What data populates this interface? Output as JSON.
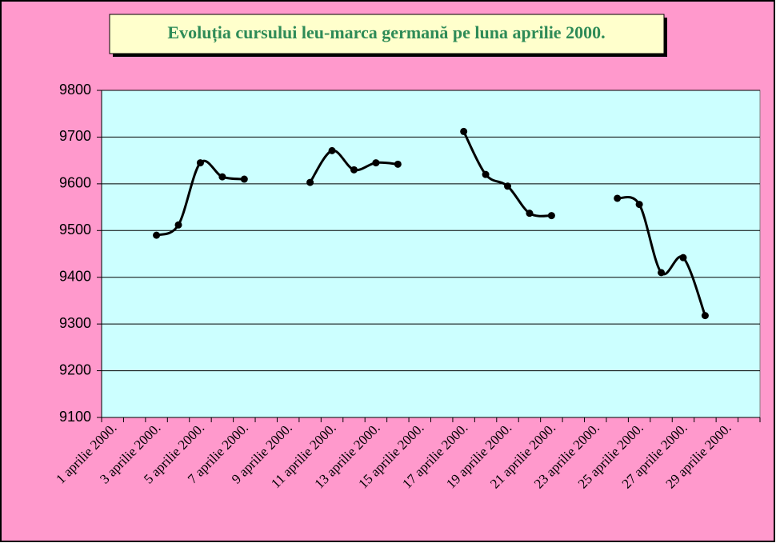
{
  "chart_data": {
    "type": "line",
    "title": "Evoluția cursului leu-marca germană pe luna aprilie 2000.",
    "categories": [
      "1 aprilie 2000.",
      null,
      "3 aprilie 2000.",
      null,
      "5 aprilie 2000.",
      null,
      "7 aprilie 2000.",
      null,
      "9 aprilie 2000.",
      null,
      "11 aprilie 2000.",
      null,
      "13 aprilie 2000.",
      null,
      "15 aprilie 2000.",
      null,
      "17 aprilie 2000.",
      null,
      "19 aprilie 2000.",
      null,
      "21 aprilie 2000.",
      null,
      "23 aprilie 2000.",
      null,
      "25 aprilie 2000.",
      null,
      "27 aprilie 2000.",
      null,
      "29 aprilie 2000.",
      null
    ],
    "values": [
      null,
      null,
      9490,
      9512,
      9645,
      9615,
      9610,
      null,
      null,
      9603,
      9671,
      9630,
      9645,
      9642,
      null,
      null,
      9712,
      9620,
      9595,
      9537,
      9532,
      null,
      null,
      9569,
      9556,
      9410,
      9442,
      9318,
      null,
      null
    ],
    "color": "#000000",
    "ylim": [
      9100,
      9800
    ],
    "yticks": [
      9100,
      9200,
      9300,
      9400,
      9500,
      9600,
      9700,
      9800
    ],
    "grid": true
  }
}
